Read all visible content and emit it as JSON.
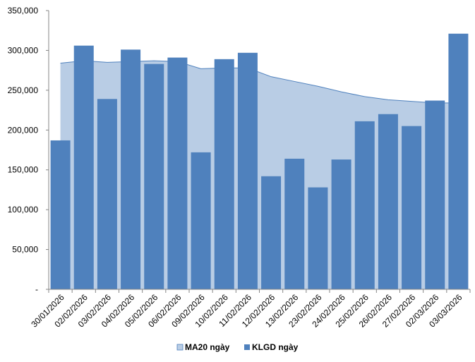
{
  "chart_data": {
    "type": "bar",
    "categories": [
      "30/01/2026",
      "02/02/2026",
      "03/02/2026",
      "04/02/2026",
      "05/02/2026",
      "06/02/2026",
      "09/02/2026",
      "10/02/2026",
      "11/02/2026",
      "12/02/2026",
      "13/02/2026",
      "23/02/2026",
      "24/02/2026",
      "25/02/2026",
      "26/02/2026",
      "27/02/2026",
      "02/03/2026",
      "03/03/2026"
    ],
    "series": [
      {
        "name": "MA20 ngày",
        "type": "area",
        "color": "#b9cde5",
        "stroke": "#4f81bd",
        "values": [
          284000,
          287000,
          285000,
          286000,
          287000,
          286000,
          277000,
          278000,
          278000,
          267000,
          261000,
          255000,
          248000,
          242000,
          238000,
          236000,
          234000,
          234000
        ]
      },
      {
        "name": "KLGD ngày",
        "type": "bar",
        "color": "#4f81bd",
        "values": [
          187000,
          306000,
          239000,
          301000,
          283000,
          291000,
          172000,
          289000,
          297000,
          142000,
          164000,
          128000,
          163000,
          211000,
          220000,
          205000,
          237000,
          321000
        ]
      }
    ],
    "y_ticks": [
      "-",
      "50,000",
      "100,000",
      "150,000",
      "200,000",
      "250,000",
      "300,000",
      "350,000"
    ],
    "ylim": [
      0,
      350000
    ],
    "legend_position": "bottom",
    "grid": false
  }
}
